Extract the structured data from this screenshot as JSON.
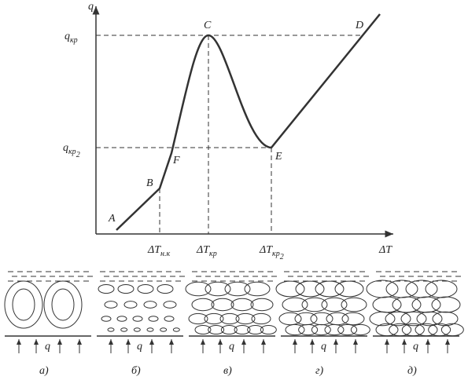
{
  "axes": {
    "y_label": "q",
    "x_label": "ΔT"
  },
  "y_marks": [
    {
      "main": "q",
      "sub": "кр"
    },
    {
      "main": "q",
      "sub": "кр",
      "subsub": "2"
    }
  ],
  "x_marks": [
    {
      "main": "ΔT",
      "sub": "н.к"
    },
    {
      "main": "ΔT",
      "sub": "кр"
    },
    {
      "main": "ΔT",
      "sub": "кр",
      "subsub": "2"
    }
  ],
  "points": [
    "A",
    "B",
    "C",
    "D",
    "E",
    "F"
  ],
  "panels": [
    {
      "label": "а)",
      "q": "q"
    },
    {
      "label": "б)",
      "q": "q"
    },
    {
      "label": "в)",
      "q": "q"
    },
    {
      "label": "г)",
      "q": "q"
    },
    {
      "label": "д)",
      "q": "q"
    }
  ]
}
